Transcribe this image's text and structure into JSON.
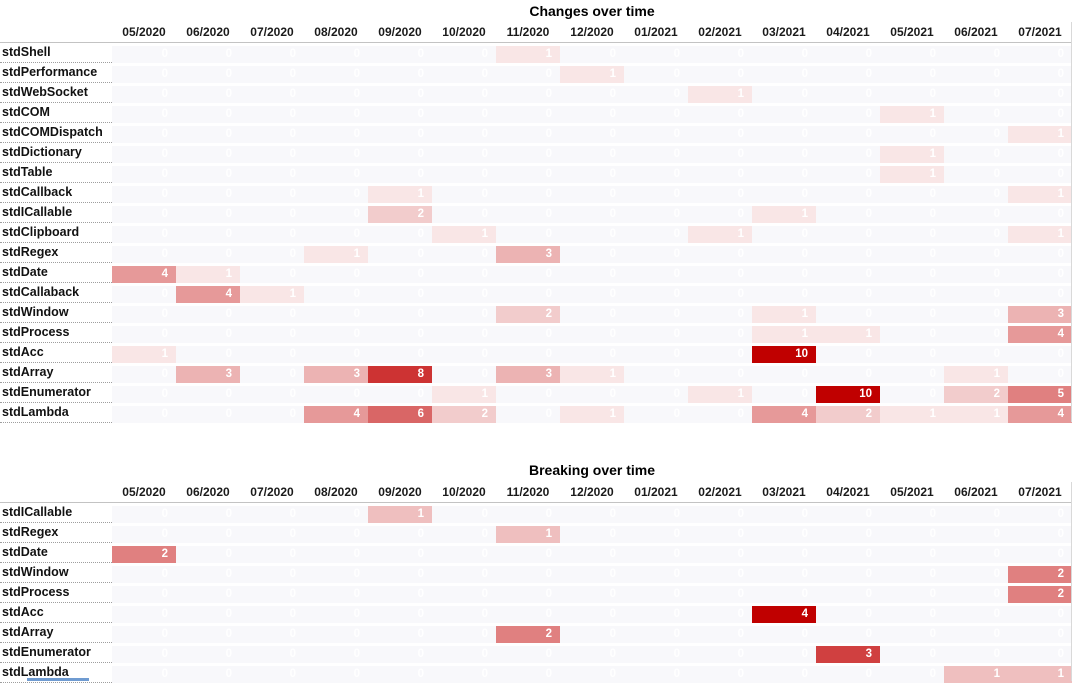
{
  "colors": {
    "heat_max": "#c00000",
    "zero_cell": "#f8f8fb",
    "value_text": "#ffffff",
    "tab_fragment_blue": "#6f9bd1"
  },
  "chart_data": [
    {
      "type": "heatmap",
      "title": "Changes over time",
      "legend_position": "none",
      "grid": false,
      "scale": {
        "min": 0,
        "max": 10,
        "min_color": "#ffffff",
        "max_color": "#c00000"
      },
      "categories": [
        "05/2020",
        "06/2020",
        "07/2020",
        "08/2020",
        "09/2020",
        "10/2020",
        "11/2020",
        "12/2020",
        "01/2021",
        "02/2021",
        "03/2021",
        "04/2021",
        "05/2021",
        "06/2021",
        "07/2021"
      ],
      "rows": [
        {
          "name": "stdShell",
          "values": [
            0,
            0,
            0,
            0,
            0,
            0,
            1,
            0,
            0,
            0,
            0,
            0,
            0,
            0,
            0
          ]
        },
        {
          "name": "stdPerformance",
          "values": [
            0,
            0,
            0,
            0,
            0,
            0,
            0,
            1,
            0,
            0,
            0,
            0,
            0,
            0,
            0
          ]
        },
        {
          "name": "stdWebSocket",
          "values": [
            0,
            0,
            0,
            0,
            0,
            0,
            0,
            0,
            0,
            1,
            0,
            0,
            0,
            0,
            0
          ]
        },
        {
          "name": "stdCOM",
          "values": [
            0,
            0,
            0,
            0,
            0,
            0,
            0,
            0,
            0,
            0,
            0,
            0,
            1,
            0,
            0
          ]
        },
        {
          "name": "stdCOMDispatch",
          "values": [
            0,
            0,
            0,
            0,
            0,
            0,
            0,
            0,
            0,
            0,
            0,
            0,
            0,
            0,
            1
          ]
        },
        {
          "name": "stdDictionary",
          "values": [
            0,
            0,
            0,
            0,
            0,
            0,
            0,
            0,
            0,
            0,
            0,
            0,
            1,
            0,
            0
          ]
        },
        {
          "name": "stdTable",
          "values": [
            0,
            0,
            0,
            0,
            0,
            0,
            0,
            0,
            0,
            0,
            0,
            0,
            1,
            0,
            0
          ]
        },
        {
          "name": "stdCallback",
          "values": [
            0,
            0,
            0,
            0,
            1,
            0,
            0,
            0,
            0,
            0,
            0,
            0,
            0,
            0,
            1
          ]
        },
        {
          "name": "stdICallable",
          "values": [
            0,
            0,
            0,
            0,
            2,
            0,
            0,
            0,
            0,
            0,
            1,
            0,
            0,
            0,
            0
          ]
        },
        {
          "name": "stdClipboard",
          "values": [
            0,
            0,
            0,
            0,
            0,
            1,
            0,
            0,
            0,
            1,
            0,
            0,
            0,
            0,
            1
          ]
        },
        {
          "name": "stdRegex",
          "values": [
            0,
            0,
            0,
            1,
            0,
            0,
            3,
            0,
            0,
            0,
            0,
            0,
            0,
            0,
            0
          ]
        },
        {
          "name": "stdDate",
          "values": [
            4,
            1,
            0,
            0,
            0,
            0,
            0,
            0,
            0,
            0,
            0,
            0,
            0,
            0,
            0
          ]
        },
        {
          "name": "stdCallaback",
          "values": [
            0,
            4,
            1,
            0,
            0,
            0,
            0,
            0,
            0,
            0,
            0,
            0,
            0,
            0,
            0
          ]
        },
        {
          "name": "stdWindow",
          "values": [
            0,
            0,
            0,
            0,
            0,
            0,
            2,
            0,
            0,
            0,
            1,
            0,
            0,
            0,
            3
          ]
        },
        {
          "name": "stdProcess",
          "values": [
            0,
            0,
            0,
            0,
            0,
            0,
            0,
            0,
            0,
            0,
            1,
            1,
            0,
            0,
            4
          ]
        },
        {
          "name": "stdAcc",
          "values": [
            1,
            0,
            0,
            0,
            0,
            0,
            0,
            0,
            0,
            0,
            10,
            0,
            0,
            0,
            0
          ]
        },
        {
          "name": "stdArray",
          "values": [
            0,
            3,
            0,
            3,
            8,
            0,
            3,
            1,
            0,
            0,
            0,
            0,
            0,
            1,
            0
          ]
        },
        {
          "name": "stdEnumerator",
          "values": [
            0,
            0,
            0,
            0,
            0,
            1,
            0,
            0,
            0,
            1,
            0,
            10,
            0,
            2,
            5
          ]
        },
        {
          "name": "stdLambda",
          "values": [
            0,
            0,
            0,
            4,
            6,
            2,
            0,
            1,
            0,
            0,
            4,
            2,
            1,
            1,
            4
          ]
        }
      ]
    },
    {
      "type": "heatmap",
      "title": "Breaking over time",
      "legend_position": "none",
      "grid": false,
      "scale": {
        "min": 0,
        "max": 4,
        "min_color": "#ffffff",
        "max_color": "#c00000"
      },
      "categories": [
        "05/2020",
        "06/2020",
        "07/2020",
        "08/2020",
        "09/2020",
        "10/2020",
        "11/2020",
        "12/2020",
        "01/2021",
        "02/2021",
        "03/2021",
        "04/2021",
        "05/2021",
        "06/2021",
        "07/2021"
      ],
      "rows": [
        {
          "name": "stdICallable",
          "values": [
            0,
            0,
            0,
            0,
            1,
            0,
            0,
            0,
            0,
            0,
            0,
            0,
            0,
            0,
            0
          ]
        },
        {
          "name": "stdRegex",
          "values": [
            0,
            0,
            0,
            0,
            0,
            0,
            1,
            0,
            0,
            0,
            0,
            0,
            0,
            0,
            0
          ]
        },
        {
          "name": "stdDate",
          "values": [
            2,
            0,
            0,
            0,
            0,
            0,
            0,
            0,
            0,
            0,
            0,
            0,
            0,
            0,
            0
          ]
        },
        {
          "name": "stdWindow",
          "values": [
            0,
            0,
            0,
            0,
            0,
            0,
            0,
            0,
            0,
            0,
            0,
            0,
            0,
            0,
            2
          ]
        },
        {
          "name": "stdProcess",
          "values": [
            0,
            0,
            0,
            0,
            0,
            0,
            0,
            0,
            0,
            0,
            0,
            0,
            0,
            0,
            2
          ]
        },
        {
          "name": "stdAcc",
          "values": [
            0,
            0,
            0,
            0,
            0,
            0,
            0,
            0,
            0,
            0,
            4,
            0,
            0,
            0,
            0
          ]
        },
        {
          "name": "stdArray",
          "values": [
            0,
            0,
            0,
            0,
            0,
            0,
            2,
            0,
            0,
            0,
            0,
            0,
            0,
            0,
            0
          ]
        },
        {
          "name": "stdEnumerator",
          "values": [
            0,
            0,
            0,
            0,
            0,
            0,
            0,
            0,
            0,
            0,
            0,
            3,
            0,
            0,
            0
          ]
        },
        {
          "name": "stdLambda",
          "values": [
            0,
            0,
            0,
            0,
            0,
            0,
            0,
            0,
            0,
            0,
            0,
            0,
            0,
            1,
            1
          ]
        }
      ]
    }
  ]
}
